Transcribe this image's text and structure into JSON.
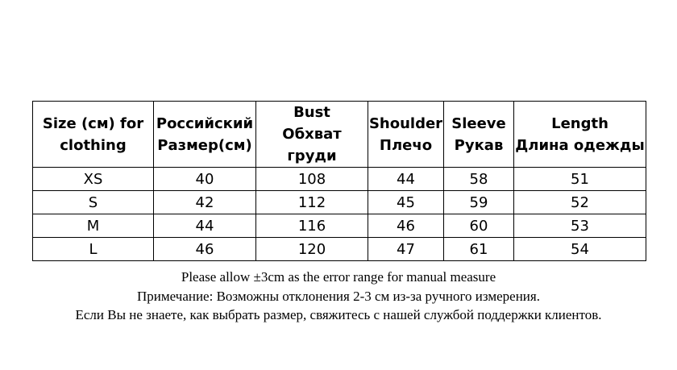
{
  "table": {
    "headers": [
      [
        "Size (см) for",
        "clothing"
      ],
      [
        "Российский",
        "Размер(см)"
      ],
      [
        "Bust",
        "Обхват груди"
      ],
      [
        "Shoulder",
        "Плечо"
      ],
      [
        "Sleeve",
        "Рукав"
      ],
      [
        "Length",
        "Длина одежды"
      ]
    ],
    "rows": [
      [
        "XS",
        "40",
        "108",
        "44",
        "58",
        "51"
      ],
      [
        "S",
        "42",
        "112",
        "45",
        "59",
        "52"
      ],
      [
        "M",
        "44",
        "116",
        "46",
        "60",
        "53"
      ],
      [
        "L",
        "46",
        "120",
        "47",
        "61",
        "54"
      ]
    ]
  },
  "notes": [
    "Please allow ±3cm as the error range for manual measure",
    "Примечание: Возможны отклонения 2-3 см из-за ручного измерения.",
    "Если Вы не знаете, как выбрать размер, свяжитесь с нашей службой поддержки клиентов."
  ]
}
